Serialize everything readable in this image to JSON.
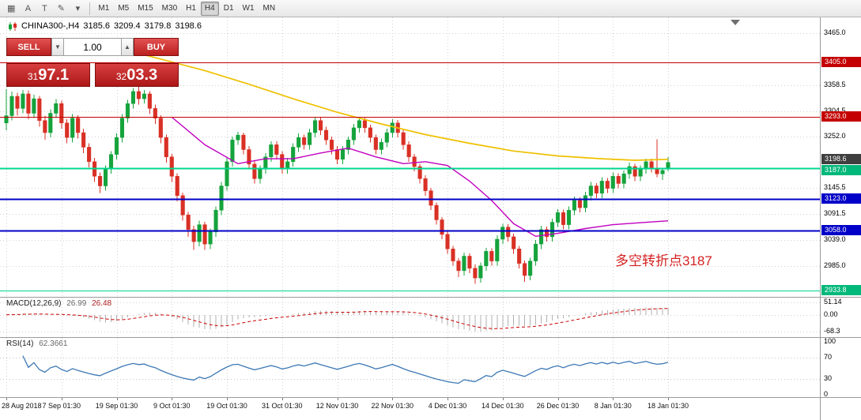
{
  "toolbar": {
    "icons": [
      {
        "name": "charts-icon",
        "glyph": "▦"
      },
      {
        "name": "text-a-icon",
        "glyph": "A"
      },
      {
        "name": "text-t-icon",
        "glyph": "T"
      },
      {
        "name": "pencil-icon",
        "glyph": "✎"
      },
      {
        "name": "dropdown-arrow-icon",
        "glyph": "▾"
      }
    ],
    "timeframes": [
      "M1",
      "M5",
      "M15",
      "M30",
      "H1",
      "H4",
      "D1",
      "W1",
      "MN"
    ],
    "active_timeframe": "H4"
  },
  "chart_header": {
    "symbol": "CHINA300-,H4",
    "open": "3185.6",
    "high": "3209.4",
    "low": "3179.8",
    "close": "3198.6"
  },
  "trade_panel": {
    "sell_label": "SELL",
    "buy_label": "BUY",
    "volume": "1.00",
    "volume_down_icon": "▼",
    "volume_up_icon": "▲",
    "sell_price": "3197.1",
    "buy_price": "3203.3"
  },
  "annotation": {
    "text": "多空转折点3187",
    "color": "#d42222"
  },
  "price_axis": {
    "labels": [
      "3465.0",
      "3358.5",
      "3304.5",
      "3252.0",
      "3145.5",
      "3091.5",
      "3039.0",
      "2985.0"
    ],
    "tags": [
      {
        "text": "3405.0",
        "price": 3405.0,
        "bg": "#c40000",
        "dy": 0
      },
      {
        "text": "3293.0",
        "price": 3293.0,
        "bg": "#c40000",
        "dy": 0
      },
      {
        "text": "3198.6",
        "price": 3198.6,
        "bg": "#3f3f3f",
        "dy": -4
      },
      {
        "text": "3187.0",
        "price": 3187.0,
        "bg": "#00b87a",
        "dy": 3
      },
      {
        "text": "3123.0",
        "price": 3123.0,
        "bg": "#0000c8",
        "dy": 0
      },
      {
        "text": "3058.0",
        "price": 3058.0,
        "bg": "#0000c8",
        "dy": 0
      },
      {
        "text": "2933.8",
        "price": 2933.8,
        "bg": "#00b87a",
        "dy": 0
      }
    ]
  },
  "hlines": [
    {
      "price": 3405.0,
      "color": "#c40000",
      "width": 1.4
    },
    {
      "price": 3293.0,
      "color": "#c40000",
      "width": 1.4
    },
    {
      "price": 3187.0,
      "color": "#00d68f",
      "width": 2
    },
    {
      "price": 3123.0,
      "color": "#0000c8",
      "width": 2
    },
    {
      "price": 3058.0,
      "color": "#0000c8",
      "width": 2
    },
    {
      "price": 2933.8,
      "color": "#00d68f",
      "width": 1
    }
  ],
  "macd_panel": {
    "label": "MACD(12,26,9)",
    "value_main": "26.99",
    "value_signal": "26.48",
    "axis": [
      {
        "text": "51.14",
        "value": 51.14
      },
      {
        "text": "0.00",
        "value": 0
      },
      {
        "text": "-68.3",
        "value": -68.3
      }
    ]
  },
  "rsi_panel": {
    "label": "RSI(14)",
    "value": "62.3661",
    "axis": [
      {
        "text": "100",
        "value": 100
      },
      {
        "text": "70",
        "value": 70
      },
      {
        "text": "30",
        "value": 30
      },
      {
        "text": "0",
        "value": 0
      }
    ],
    "levels": [
      70,
      30
    ]
  },
  "time_axis": {
    "ticks": [
      {
        "label": "28 Aug 2018",
        "index": 0
      },
      {
        "label": "7 Sep 01:30",
        "index": 10
      },
      {
        "label": "19 Sep 01:30",
        "index": 20
      },
      {
        "label": "9 Oct 01:30",
        "index": 30
      },
      {
        "label": "19 Oct 01:30",
        "index": 40
      },
      {
        "label": "31 Oct 01:30",
        "index": 50
      },
      {
        "label": "12 Nov 01:30",
        "index": 60
      },
      {
        "label": "22 Nov 01:30",
        "index": 70
      },
      {
        "label": "4 Dec 01:30",
        "index": 80
      },
      {
        "label": "14 Dec 01:30",
        "index": 90
      },
      {
        "label": "26 Dec 01:30",
        "index": 100
      },
      {
        "label": "8 Jan 01:30",
        "index": 110
      },
      {
        "label": "18 Jan 01:30",
        "index": 120
      }
    ]
  },
  "chart_data": {
    "type": "candlestick",
    "symbol": "CHINA300-",
    "timeframe": "H4",
    "title": "CHINA300-,H4",
    "ylim": [
      2921,
      3498
    ],
    "grid": true,
    "colors": {
      "bull": "#15a33c",
      "bear": "#d93025",
      "ma_slow": "#efc000",
      "ma_fast": "#c000c0",
      "macd_hist": "#b0b0b0",
      "macd_signal": "#cc0000",
      "rsi": "#3c78b4",
      "grid": "#d2d2d2"
    },
    "candles": [
      [
        3280,
        3350,
        3265,
        3295
      ],
      [
        3295,
        3345,
        3285,
        3335
      ],
      [
        3335,
        3342,
        3295,
        3310
      ],
      [
        3310,
        3348,
        3300,
        3340
      ],
      [
        3340,
        3347,
        3288,
        3300
      ],
      [
        3300,
        3338,
        3290,
        3330
      ],
      [
        3330,
        3336,
        3272,
        3285
      ],
      [
        3285,
        3295,
        3245,
        3260
      ],
      [
        3260,
        3308,
        3250,
        3300
      ],
      [
        3300,
        3329,
        3290,
        3320
      ],
      [
        3320,
        3326,
        3268,
        3280
      ],
      [
        3280,
        3288,
        3238,
        3250
      ],
      [
        3250,
        3298,
        3240,
        3290
      ],
      [
        3290,
        3296,
        3248,
        3260
      ],
      [
        3260,
        3268,
        3218,
        3230
      ],
      [
        3230,
        3238,
        3188,
        3200
      ],
      [
        3200,
        3208,
        3158,
        3170
      ],
      [
        3170,
        3178,
        3135,
        3150
      ],
      [
        3150,
        3192,
        3140,
        3185
      ],
      [
        3185,
        3222,
        3175,
        3215
      ],
      [
        3215,
        3258,
        3205,
        3250
      ],
      [
        3250,
        3298,
        3240,
        3290
      ],
      [
        3290,
        3328,
        3280,
        3320
      ],
      [
        3320,
        3352,
        3310,
        3345
      ],
      [
        3345,
        3355,
        3318,
        3330
      ],
      [
        3330,
        3348,
        3320,
        3340
      ],
      [
        3340,
        3346,
        3298,
        3310
      ],
      [
        3310,
        3318,
        3278,
        3290
      ],
      [
        3290,
        3296,
        3238,
        3250
      ],
      [
        3250,
        3256,
        3198,
        3210
      ],
      [
        3210,
        3216,
        3158,
        3170
      ],
      [
        3170,
        3176,
        3118,
        3130
      ],
      [
        3130,
        3136,
        3078,
        3090
      ],
      [
        3090,
        3096,
        3045,
        3060
      ],
      [
        3060,
        3068,
        3018,
        3035
      ],
      [
        3035,
        3078,
        3025,
        3070
      ],
      [
        3070,
        3076,
        3018,
        3030
      ],
      [
        3030,
        3062,
        3020,
        3055
      ],
      [
        3055,
        3108,
        3045,
        3100
      ],
      [
        3100,
        3158,
        3090,
        3150
      ],
      [
        3150,
        3208,
        3140,
        3200
      ],
      [
        3200,
        3252,
        3190,
        3245
      ],
      [
        3245,
        3262,
        3235,
        3255
      ],
      [
        3255,
        3260,
        3215,
        3225
      ],
      [
        3225,
        3232,
        3185,
        3195
      ],
      [
        3195,
        3202,
        3155,
        3165
      ],
      [
        3165,
        3192,
        3155,
        3185
      ],
      [
        3185,
        3218,
        3175,
        3210
      ],
      [
        3210,
        3242,
        3200,
        3235
      ],
      [
        3235,
        3242,
        3205,
        3215
      ],
      [
        3215,
        3222,
        3175,
        3185
      ],
      [
        3185,
        3208,
        3175,
        3200
      ],
      [
        3200,
        3238,
        3190,
        3230
      ],
      [
        3230,
        3258,
        3220,
        3250
      ],
      [
        3250,
        3256,
        3225,
        3235
      ],
      [
        3235,
        3268,
        3225,
        3260
      ],
      [
        3260,
        3292,
        3250,
        3285
      ],
      [
        3285,
        3292,
        3255,
        3265
      ],
      [
        3265,
        3272,
        3235,
        3245
      ],
      [
        3245,
        3252,
        3215,
        3225
      ],
      [
        3225,
        3232,
        3195,
        3205
      ],
      [
        3205,
        3232,
        3195,
        3225
      ],
      [
        3225,
        3252,
        3215,
        3245
      ],
      [
        3245,
        3278,
        3235,
        3270
      ],
      [
        3270,
        3292,
        3260,
        3285
      ],
      [
        3285,
        3292,
        3260,
        3270
      ],
      [
        3270,
        3276,
        3240,
        3250
      ],
      [
        3250,
        3256,
        3215,
        3225
      ],
      [
        3225,
        3248,
        3215,
        3240
      ],
      [
        3240,
        3268,
        3230,
        3260
      ],
      [
        3260,
        3288,
        3250,
        3280
      ],
      [
        3280,
        3286,
        3250,
        3260
      ],
      [
        3260,
        3266,
        3225,
        3235
      ],
      [
        3235,
        3242,
        3200,
        3210
      ],
      [
        3210,
        3216,
        3180,
        3190
      ],
      [
        3190,
        3196,
        3155,
        3165
      ],
      [
        3165,
        3172,
        3130,
        3140
      ],
      [
        3140,
        3146,
        3100,
        3110
      ],
      [
        3110,
        3116,
        3070,
        3080
      ],
      [
        3080,
        3086,
        3040,
        3050
      ],
      [
        3050,
        3056,
        3010,
        3020
      ],
      [
        3020,
        3026,
        2985,
        2995
      ],
      [
        2995,
        3001,
        2962,
        2975
      ],
      [
        2975,
        3012,
        2965,
        3005
      ],
      [
        3005,
        3011,
        2970,
        2980
      ],
      [
        2980,
        2988,
        2948,
        2960
      ],
      [
        2960,
        2992,
        2950,
        2985
      ],
      [
        2985,
        3022,
        2975,
        3015
      ],
      [
        3015,
        3021,
        2985,
        2995
      ],
      [
        2995,
        3048,
        2985,
        3040
      ],
      [
        3040,
        3072,
        3030,
        3065
      ],
      [
        3065,
        3071,
        3035,
        3045
      ],
      [
        3045,
        3051,
        3010,
        3020
      ],
      [
        3020,
        3026,
        2980,
        2990
      ],
      [
        2990,
        2996,
        2952,
        2965
      ],
      [
        2965,
        3002,
        2955,
        2995
      ],
      [
        2995,
        3038,
        2985,
        3030
      ],
      [
        3030,
        3068,
        3020,
        3060
      ],
      [
        3060,
        3066,
        3035,
        3045
      ],
      [
        3045,
        3082,
        3035,
        3075
      ],
      [
        3075,
        3102,
        3065,
        3095
      ],
      [
        3095,
        3101,
        3060,
        3070
      ],
      [
        3070,
        3108,
        3060,
        3100
      ],
      [
        3100,
        3128,
        3090,
        3120
      ],
      [
        3120,
        3126,
        3095,
        3105
      ],
      [
        3105,
        3138,
        3095,
        3130
      ],
      [
        3130,
        3158,
        3120,
        3150
      ],
      [
        3150,
        3156,
        3125,
        3135
      ],
      [
        3135,
        3168,
        3125,
        3160
      ],
      [
        3160,
        3166,
        3135,
        3145
      ],
      [
        3145,
        3178,
        3135,
        3170
      ],
      [
        3170,
        3176,
        3145,
        3155
      ],
      [
        3155,
        3182,
        3145,
        3175
      ],
      [
        3175,
        3198,
        3165,
        3190
      ],
      [
        3190,
        3196,
        3160,
        3170
      ],
      [
        3170,
        3192,
        3160,
        3185
      ],
      [
        3185,
        3206,
        3175,
        3200
      ],
      [
        3200,
        3206,
        3178,
        3185
      ],
      [
        3185,
        3246,
        3168,
        3175
      ],
      [
        3175,
        3186,
        3162,
        3182
      ],
      [
        3185.6,
        3209.4,
        3179.8,
        3198.6
      ]
    ],
    "ma_slow_points": [
      [
        20,
        3435
      ],
      [
        28,
        3412
      ],
      [
        36,
        3388
      ],
      [
        44,
        3360
      ],
      [
        52,
        3330
      ],
      [
        60,
        3302
      ],
      [
        68,
        3278
      ],
      [
        76,
        3256
      ],
      [
        84,
        3238
      ],
      [
        92,
        3222
      ],
      [
        100,
        3212
      ],
      [
        108,
        3206
      ],
      [
        114,
        3203
      ],
      [
        120,
        3205
      ]
    ],
    "ma_fast_points": [
      [
        30,
        3292
      ],
      [
        36,
        3235
      ],
      [
        42,
        3196
      ],
      [
        47,
        3206
      ],
      [
        52,
        3206
      ],
      [
        57,
        3218
      ],
      [
        62,
        3228
      ],
      [
        67,
        3210
      ],
      [
        72,
        3196
      ],
      [
        76,
        3200
      ],
      [
        80,
        3192
      ],
      [
        84,
        3160
      ],
      [
        88,
        3120
      ],
      [
        92,
        3072
      ],
      [
        96,
        3046
      ],
      [
        100,
        3052
      ],
      [
        105,
        3062
      ],
      [
        110,
        3070
      ],
      [
        115,
        3074
      ],
      [
        120,
        3078
      ]
    ]
  }
}
